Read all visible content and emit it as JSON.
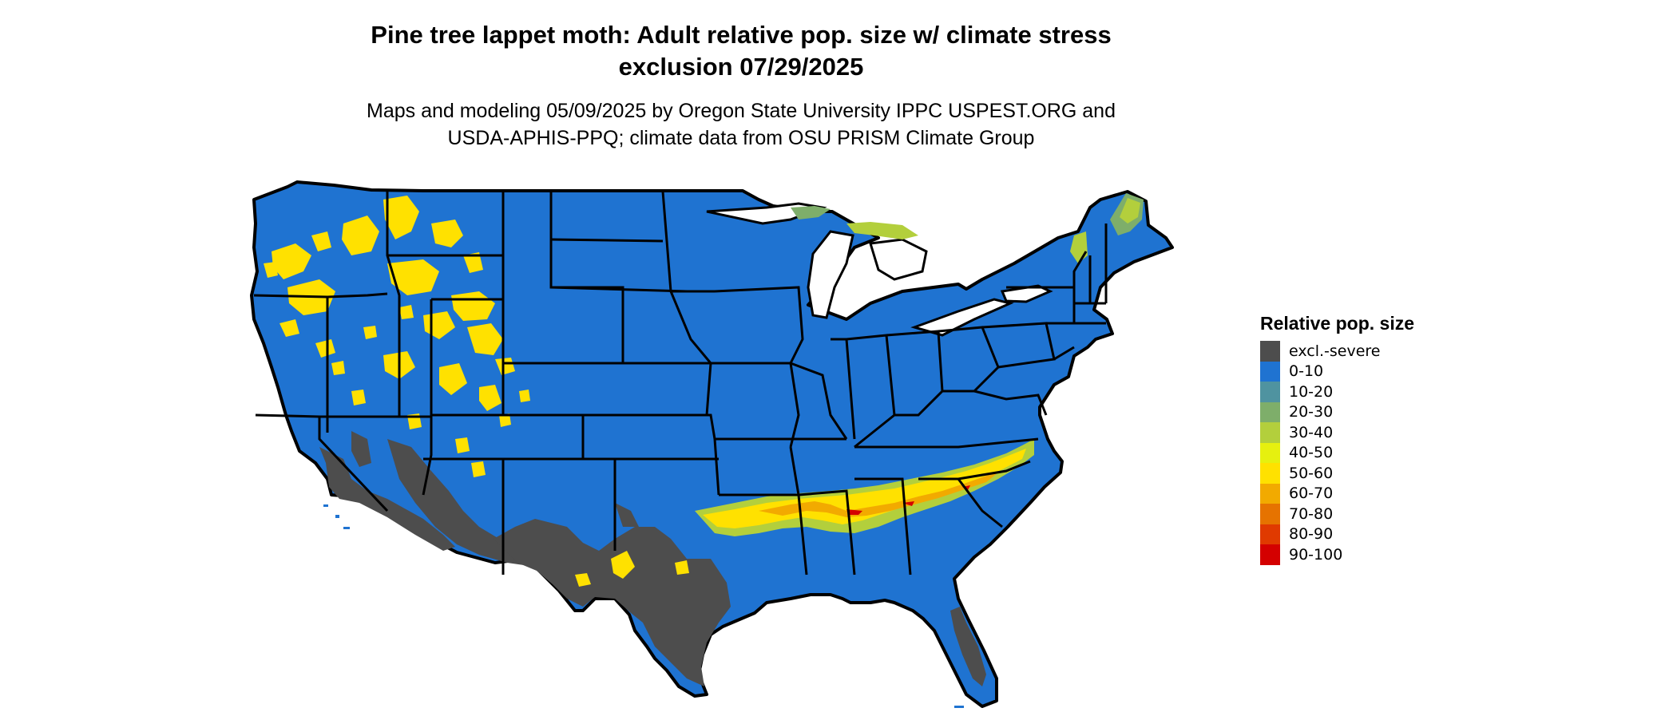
{
  "title_line1": "Pine tree lappet moth: Adult relative pop. size w/ climate stress",
  "title_line2": "exclusion 07/29/2025",
  "subtitle_line1": "Maps and modeling 05/09/2025 by Oregon State University IPPC USPEST.ORG and",
  "subtitle_line2": "USDA-APHIS-PPQ; climate data from OSU PRISM Climate Group",
  "legend": {
    "title": "Relative pop. size",
    "items": [
      {
        "label": "excl.-severe",
        "color": "#4d4d4d"
      },
      {
        "label": "0-10",
        "color": "#1f73d1"
      },
      {
        "label": "10-20",
        "color": "#4f93a0"
      },
      {
        "label": "20-30",
        "color": "#7eae6a"
      },
      {
        "label": "30-40",
        "color": "#b3cf3c"
      },
      {
        "label": "40-50",
        "color": "#e6f00f"
      },
      {
        "label": "50-60",
        "color": "#ffe100"
      },
      {
        "label": "60-70",
        "color": "#f2aa00"
      },
      {
        "label": "70-80",
        "color": "#e67300"
      },
      {
        "label": "80-90",
        "color": "#e03a00"
      },
      {
        "label": "90-100",
        "color": "#d40000"
      }
    ]
  }
}
